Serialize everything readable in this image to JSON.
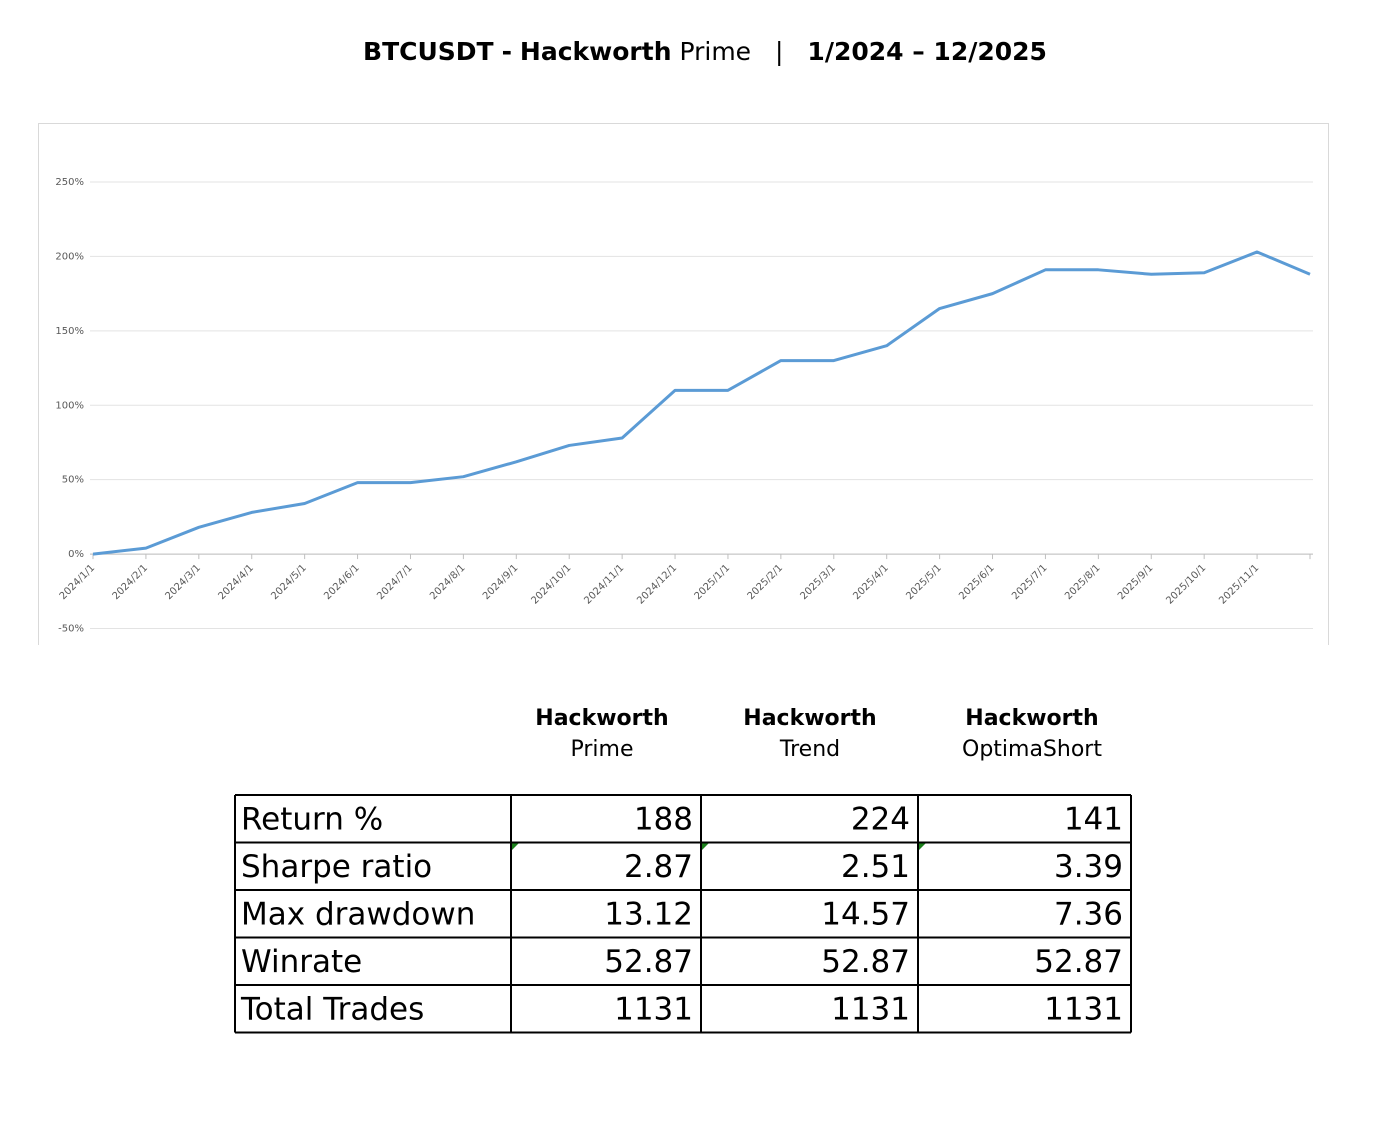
{
  "title": {
    "symbol": "BTCUSDT",
    "separator": "-",
    "strategy": "Hackworth",
    "variant": "Prime",
    "divider": "|",
    "period": "1/2024 – 12/2025"
  },
  "chart_data": {
    "type": "line",
    "categories": [
      "2024/1/1",
      "2024/2/1",
      "2024/3/1",
      "2024/4/1",
      "2024/5/1",
      "2024/6/1",
      "2024/7/1",
      "2024/8/1",
      "2024/9/1",
      "2024/10/1",
      "2024/11/1",
      "2024/12/1",
      "2025/1/1",
      "2025/2/1",
      "2025/3/1",
      "2025/4/1",
      "2025/5/1",
      "2025/6/1",
      "2025/7/1",
      "2025/8/1",
      "2025/9/1",
      "2025/10/1",
      "2025/11/1",
      null
    ],
    "series": [
      {
        "color": "#5b9bd5",
        "values": [
          0,
          4,
          18,
          28,
          34,
          48,
          48,
          52,
          62,
          73,
          78,
          110,
          110,
          130,
          130,
          140,
          165,
          175,
          191,
          191,
          188,
          189,
          203,
          188
        ]
      }
    ],
    "ylim": [
      -50,
      250
    ],
    "yticks": [
      {
        "value": -50,
        "label": "-50%"
      },
      {
        "value": 0,
        "label": "0%"
      },
      {
        "value": 50,
        "label": "50%"
      },
      {
        "value": 100,
        "label": "100%"
      },
      {
        "value": 150,
        "label": "150%"
      },
      {
        "value": 200,
        "label": "200%"
      },
      {
        "value": 250,
        "label": "250%"
      }
    ],
    "grid": true
  },
  "table": {
    "columns": [
      {
        "name": "Hackworth",
        "variant": "Prime"
      },
      {
        "name": "Hackworth",
        "variant": "Trend"
      },
      {
        "name": "Hackworth",
        "variant": "OptimaShort"
      }
    ],
    "rows": [
      [
        "Return %",
        188,
        224,
        141
      ],
      [
        "Sharpe ratio",
        2.87,
        2.51,
        3.39
      ],
      [
        "Max drawdown",
        13.12,
        14.57,
        7.36
      ],
      [
        "Winrate",
        52.87,
        52.87,
        52.87
      ],
      [
        "Total Trades",
        1131,
        1131,
        1131
      ]
    ]
  }
}
